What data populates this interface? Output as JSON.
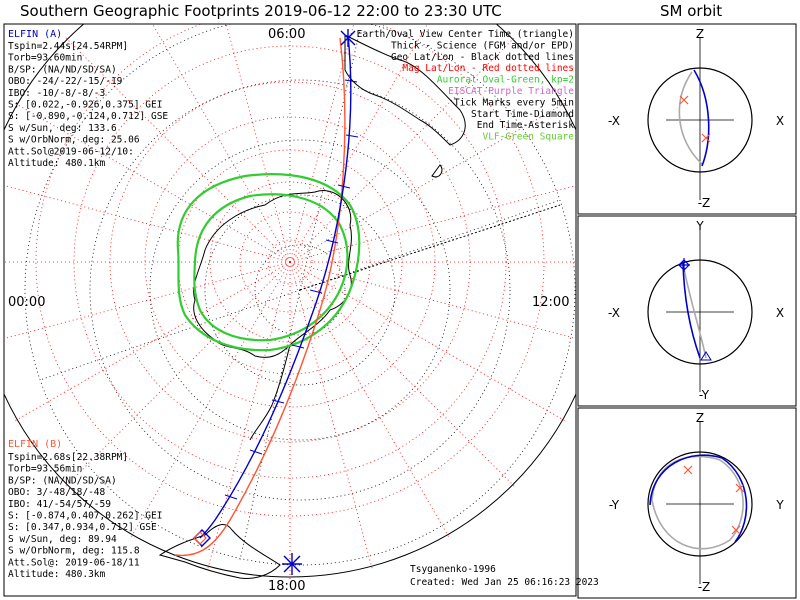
{
  "title": "Southern Geographic Footprints 2019-06-12 22:00 to 23:30 UTC",
  "sm_title": "SM orbit",
  "time_labels": {
    "top": "06:00",
    "left": "00:00",
    "right": "12:00",
    "bottom": "18:00"
  },
  "elfin_a": {
    "header": "ELFIN (A)",
    "lines": [
      "Tspin=2.44s[24.54RPM]",
      "Torb=93.60min",
      "B/SP: (NA/ND/SD/SA)",
      "OBO: -24/-22/-15/-19",
      "IBO: -10/-8/-8/-3",
      "S: [0.022,-0.926,0.375] GEI",
      "S: [-0.890,-0.124,0.712] GSE",
      "S w/Sun, deg: 133.6",
      "S w/OrbNorm, deg: 25.06",
      "Att.Sol@2019-06-12/10:",
      "Altitude: 480.1km"
    ]
  },
  "elfin_b": {
    "header": "ELFIN (B)",
    "lines": [
      "Tspin=2.68s[22.38RPM]",
      "Torb=93.56min",
      "B/SP: (NA/ND/SD/SA)",
      "OBO: 3/-48/18/-48",
      "IBO: 41/-54/57/-59",
      "S: [-0.874,0.407,0.262] GEI",
      "S: [0.347,0.934,0.712] GSE",
      "S w/Sun, deg: 89.94",
      "S w/OrbNorm, deg: 115.8",
      "Att.Sol@: 2019-06-18/11",
      "Altitude: 480.3km"
    ]
  },
  "legend": [
    {
      "text": "Earth/Oval View Center Time (triangle)",
      "color": "#000000"
    },
    {
      "text": "Thick - Science (FGM and/or EPD)",
      "color": "#000000"
    },
    {
      "text": "Geo Lat/Lon - Black dotted lines",
      "color": "#000000"
    },
    {
      "text": "Mag Lat/Lon - Red dotted lines",
      "color": "#ff0000"
    },
    {
      "text": "Auroral Oval-Green, kp=2",
      "color": "#33cc33"
    },
    {
      "text": "EISCAT-Purple Triangle",
      "color": "#cc66cc"
    },
    {
      "text": "Tick Marks every 5min",
      "color": "#000000"
    },
    {
      "text": "Start Time-Diamond",
      "color": "#000000"
    },
    {
      "text": "End Time-Asterisk",
      "color": "#000000"
    },
    {
      "text": "VLF-Green Square",
      "color": "#66cc33"
    }
  ],
  "footer": {
    "credit": "Tsyganenko-1996",
    "created": "Created: Wed Jan 25 06:16:23 2023"
  },
  "sm_panels": [
    {
      "top": "Z",
      "bottom": "-Z",
      "left": "-X",
      "right": "X"
    },
    {
      "top": "Y",
      "bottom": "-Y",
      "left": "-X",
      "right": "X"
    },
    {
      "top": "Z",
      "bottom": "-Z",
      "left": "-Y",
      "right": "Y"
    }
  ],
  "colors": {
    "elfin_a": "#0000cc",
    "elfin_b": "#ff5533",
    "oval": "#33cc33",
    "grid_mag": "#ff0000",
    "grid_geo": "#000000"
  }
}
